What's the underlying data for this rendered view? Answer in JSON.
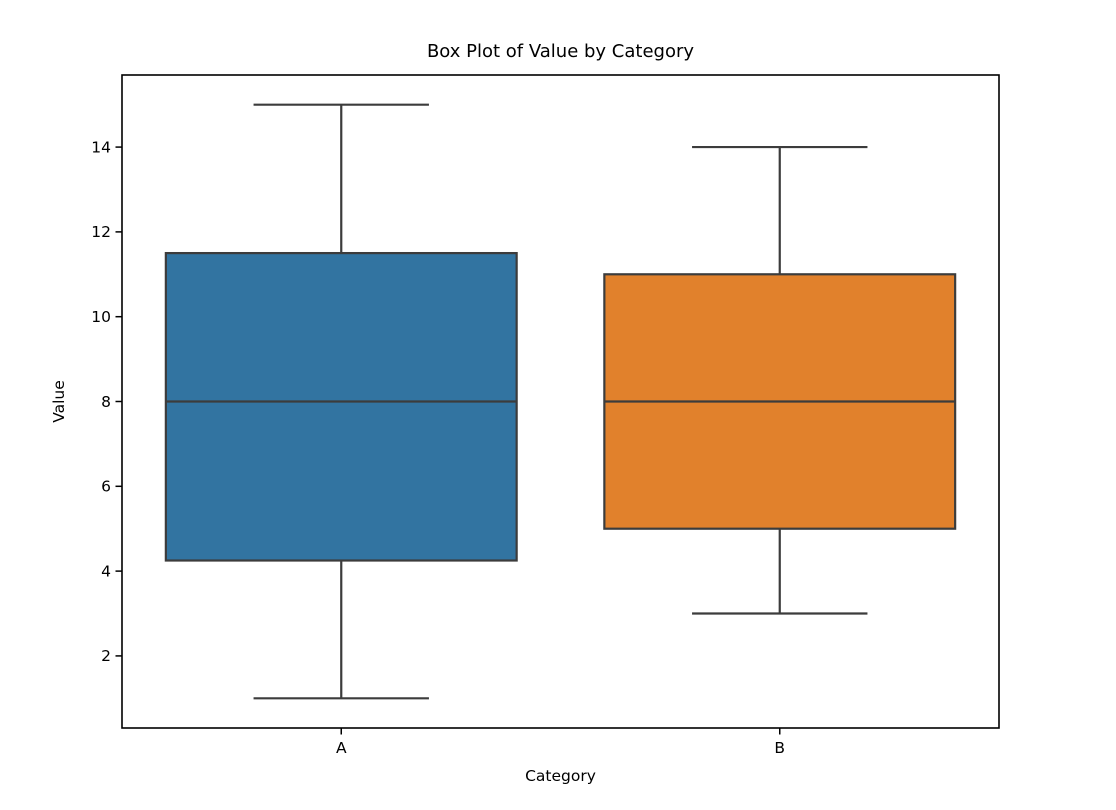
{
  "chart_data": {
    "type": "box",
    "title": "Box Plot of Value by Category",
    "xlabel": "Category",
    "ylabel": "Value",
    "categories": [
      "A",
      "B"
    ],
    "series": [
      {
        "name": "A",
        "min": 1,
        "q1": 4.25,
        "median": 8,
        "q3": 11.5,
        "max": 15,
        "color": "#3274a1"
      },
      {
        "name": "B",
        "min": 3,
        "q1": 5,
        "median": 8,
        "q3": 11,
        "max": 14,
        "color": "#e1812c"
      }
    ],
    "y_ticks": [
      2,
      4,
      6,
      8,
      10,
      12,
      14
    ],
    "ylim": [
      0.3,
      15.7
    ],
    "xlim": [
      -0.5,
      1.5
    ],
    "grid": false,
    "legend": "none",
    "box_width": 0.8,
    "cap_width": 0.4,
    "line_color": "#3c3c3c",
    "spine_color": "#000000",
    "background_color": "#ffffff"
  }
}
